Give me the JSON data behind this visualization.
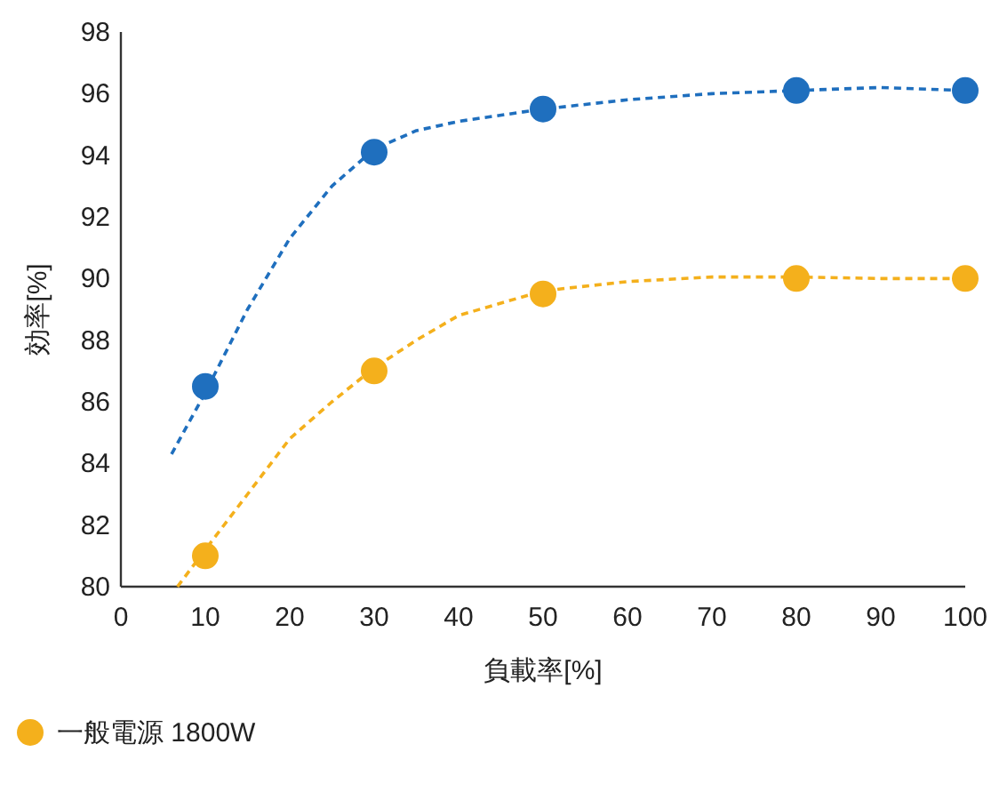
{
  "chart_data": {
    "type": "scatter",
    "xlabel": "負載率[%]",
    "ylabel": "効率[%]",
    "xlim": [
      0,
      100
    ],
    "xticks": [
      0,
      10,
      20,
      30,
      40,
      50,
      60,
      70,
      80,
      90,
      100
    ],
    "ylim": [
      80,
      98
    ],
    "yticks": [
      80,
      82,
      84,
      86,
      88,
      90,
      92,
      94,
      96,
      98
    ],
    "grid": false,
    "legend": "bottom left",
    "series": [
      {
        "type": "line",
        "line_style": "dashed",
        "color": "#1f6fbe",
        "x": [
          6,
          10,
          15,
          20,
          25,
          30,
          35,
          40,
          50,
          60,
          70,
          80,
          90,
          100
        ],
        "values": [
          84.3,
          86.3,
          89,
          91.3,
          93,
          94.2,
          94.8,
          95.1,
          95.5,
          95.8,
          96,
          96.1,
          96.2,
          96.1
        ]
      },
      {
        "type": "line",
        "line_style": "dashed",
        "color": "#f4b01c",
        "x": [
          6.7,
          10,
          15,
          20,
          25,
          30,
          35,
          40,
          50,
          60,
          70,
          80,
          90,
          100
        ],
        "values": [
          80,
          81.2,
          83,
          84.8,
          86,
          87.1,
          88,
          88.8,
          89.6,
          89.9,
          90.05,
          90.05,
          90,
          90
        ]
      },
      {
        "marker": "circle",
        "color": "#1f6fbe",
        "x": [
          10,
          30,
          50,
          80,
          100
        ],
        "values": [
          86.5,
          94.1,
          95.5,
          96.1,
          96.1
        ]
      },
      {
        "marker": "circle",
        "name": "一般電源 1800W",
        "color": "#f4b01c",
        "x": [
          10,
          30,
          50,
          80,
          100
        ],
        "values": [
          81,
          87,
          89.5,
          90,
          90
        ]
      }
    ]
  }
}
